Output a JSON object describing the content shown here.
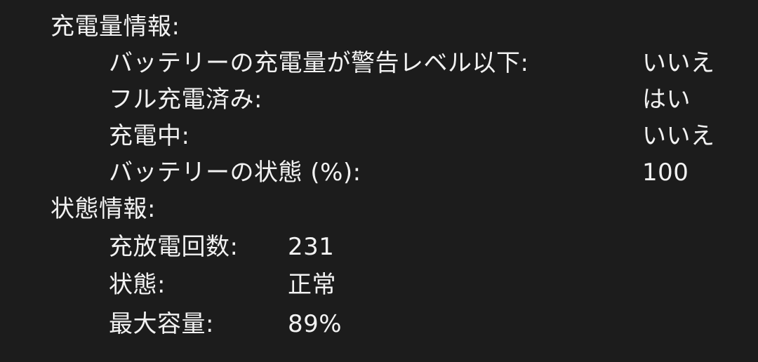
{
  "charge_info": {
    "heading": "充電量情報:",
    "rows": [
      {
        "label": "バッテリーの充電量が警告レベル以下:",
        "value": "いいえ"
      },
      {
        "label": "フル充電済み:",
        "value": "はい"
      },
      {
        "label": "充電中:",
        "value": "いいえ"
      },
      {
        "label": "バッテリーの状態 (%):",
        "value": "100"
      }
    ]
  },
  "health_info": {
    "heading": "状態情報:",
    "rows": [
      {
        "label": "充放電回数:",
        "value": "231"
      },
      {
        "label": "状態:",
        "value": "正常"
      },
      {
        "label": "最大容量:",
        "value": "89%"
      }
    ]
  }
}
